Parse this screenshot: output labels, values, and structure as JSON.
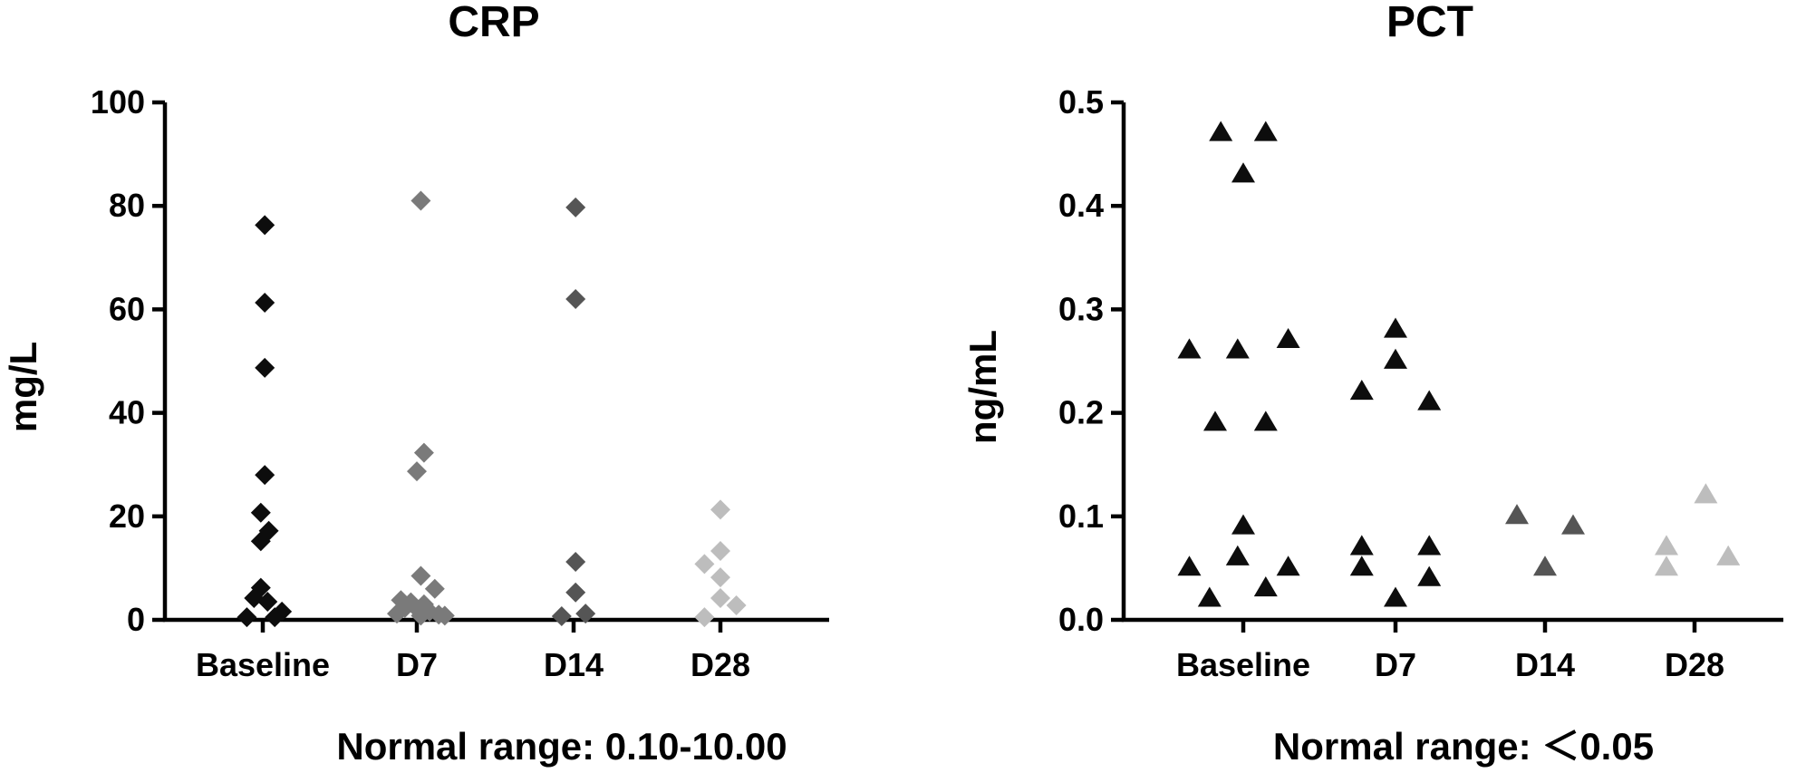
{
  "chart_data": [
    {
      "type": "scatter",
      "title": "CRP",
      "ylabel": "mg/L",
      "xlabel": "",
      "caption": "Normal range: 0.10-10.00",
      "categories": [
        "Baseline",
        "D7",
        "D14",
        "D28"
      ],
      "ylim": [
        0,
        100
      ],
      "yticks": [
        0,
        20,
        40,
        60,
        80,
        100
      ],
      "ytick_labels": [
        "0",
        "20",
        "40",
        "60",
        "80",
        "100"
      ],
      "marker": "diamond",
      "grid": false,
      "series": [
        {
          "category": "Baseline",
          "color": "#0d0d0d",
          "points": [
            [
              -0.4,
              0.5
            ],
            [
              -0.22,
              4.2
            ],
            [
              -0.05,
              6.2
            ],
            [
              0.12,
              3.5
            ],
            [
              0.3,
              0.5
            ],
            [
              0.48,
              1.6
            ],
            [
              -0.05,
              15.2
            ],
            [
              0.15,
              17.2
            ],
            [
              -0.05,
              20.7
            ],
            [
              0.05,
              28.0
            ],
            [
              0.05,
              48.7
            ],
            [
              0.05,
              61.3
            ],
            [
              0.05,
              76.3
            ]
          ]
        },
        {
          "category": "D7",
          "color": "#7a7a7a",
          "points": [
            [
              -0.5,
              1.2
            ],
            [
              -0.4,
              3.8
            ],
            [
              -0.3,
              2.3
            ],
            [
              -0.15,
              3.4
            ],
            [
              0.0,
              2.2
            ],
            [
              0.1,
              0.8
            ],
            [
              0.18,
              3.0
            ],
            [
              0.32,
              1.6
            ],
            [
              0.45,
              6.0
            ],
            [
              0.55,
              1.0
            ],
            [
              0.7,
              0.8
            ],
            [
              0.1,
              8.5
            ],
            [
              0.0,
              28.7
            ],
            [
              0.18,
              32.3
            ],
            [
              0.1,
              81.0
            ]
          ]
        },
        {
          "category": "D14",
          "color": "#555555",
          "points": [
            [
              -0.3,
              0.7
            ],
            [
              0.3,
              1.2
            ],
            [
              0.05,
              5.3
            ],
            [
              0.05,
              11.2
            ],
            [
              0.05,
              62.0
            ],
            [
              0.05,
              79.7
            ]
          ]
        },
        {
          "category": "D28",
          "color": "#bdbdbd",
          "points": [
            [
              -0.4,
              0.5
            ],
            [
              -0.4,
              10.8
            ],
            [
              0.0,
              4.2
            ],
            [
              0.0,
              8.2
            ],
            [
              0.0,
              13.3
            ],
            [
              0.0,
              21.3
            ],
            [
              0.4,
              2.8
            ]
          ]
        }
      ]
    },
    {
      "type": "scatter",
      "title": "PCT",
      "ylabel": "ng/mL",
      "xlabel": "",
      "caption": "Normal range: ＜0.05",
      "categories": [
        "Baseline",
        "D7",
        "D14",
        "D28"
      ],
      "ylim": [
        0,
        0.5
      ],
      "yticks": [
        0,
        0.1,
        0.2,
        0.3,
        0.4,
        0.5
      ],
      "ytick_labels": [
        "0.0",
        "0.1",
        "0.2",
        "0.3",
        "0.4",
        "0.5"
      ],
      "marker": "triangle",
      "grid": false,
      "series": [
        {
          "category": "Baseline",
          "color": "#0d0d0d",
          "points": [
            [
              -0.48,
              0.05
            ],
            [
              -0.3,
              0.02
            ],
            [
              -0.05,
              0.06
            ],
            [
              0.2,
              0.03
            ],
            [
              0.4,
              0.05
            ],
            [
              0.0,
              0.09
            ],
            [
              -0.25,
              0.19
            ],
            [
              0.2,
              0.19
            ],
            [
              -0.48,
              0.26
            ],
            [
              -0.05,
              0.26
            ],
            [
              0.4,
              0.27
            ],
            [
              0.0,
              0.43
            ],
            [
              -0.2,
              0.47
            ],
            [
              0.2,
              0.47
            ]
          ]
        },
        {
          "category": "D7",
          "color": "#0d0d0d",
          "points": [
            [
              -0.3,
              0.05
            ],
            [
              0.0,
              0.02
            ],
            [
              0.3,
              0.04
            ],
            [
              -0.3,
              0.07
            ],
            [
              0.3,
              0.07
            ],
            [
              -0.3,
              0.22
            ],
            [
              0.0,
              0.25
            ],
            [
              0.3,
              0.21
            ],
            [
              0.0,
              0.28
            ]
          ]
        },
        {
          "category": "D14",
          "color": "#555555",
          "points": [
            [
              -0.25,
              0.1
            ],
            [
              0.0,
              0.05
            ],
            [
              0.25,
              0.09
            ]
          ]
        },
        {
          "category": "D28",
          "color": "#bdbdbd",
          "points": [
            [
              -0.25,
              0.05
            ],
            [
              -0.25,
              0.07
            ],
            [
              0.1,
              0.12
            ],
            [
              0.3,
              0.06
            ]
          ]
        }
      ]
    }
  ]
}
